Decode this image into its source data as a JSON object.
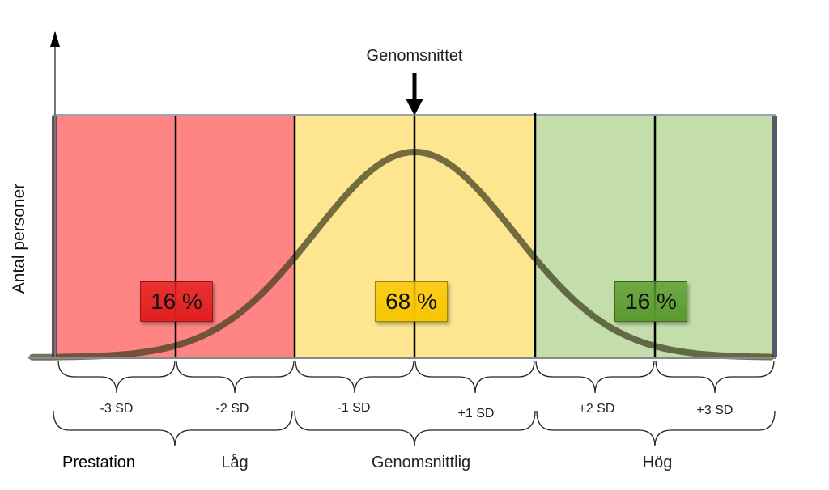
{
  "labels": {
    "mean": "Genomsnittet",
    "y_axis": "Antal personer",
    "performance": "Prestation"
  },
  "sd_labels": [
    "-3 SD",
    "-2 SD",
    "-1 SD",
    "+1 SD",
    "+2 SD",
    "+3 SD"
  ],
  "categories": [
    "Låg",
    "Genomsnittlig",
    "Hög"
  ],
  "badges": [
    {
      "text": "16 %",
      "color": "#e21e1e"
    },
    {
      "text": "68 %",
      "color": "#f7c600"
    },
    {
      "text": "16 %",
      "color": "#5a9a2e"
    }
  ],
  "colors": {
    "low_zone": "#ff8585",
    "mid_zone": "#fde68f",
    "high_zone": "#c3deaa"
  }
}
